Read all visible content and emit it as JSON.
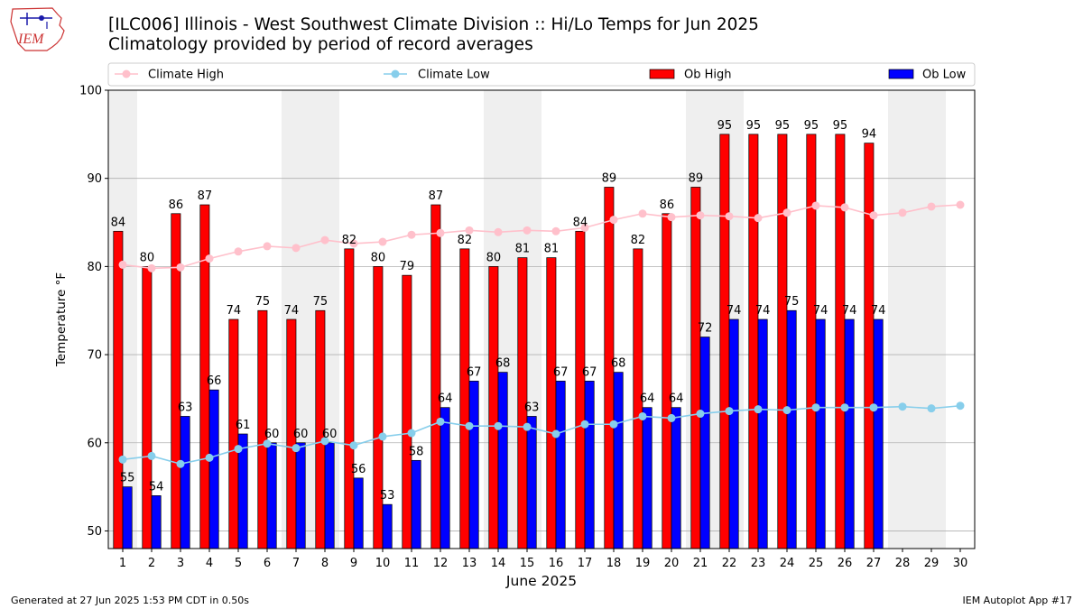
{
  "header": {
    "title": "[ILC006] Illinois - West Southwest Climate Division :: Hi/Lo Temps for Jun 2025",
    "subtitle": "Climatology provided by period of record averages",
    "logo_text": "IEM"
  },
  "footer": {
    "generated": "Generated at 27 Jun 2025 1:53 PM CDT in 0.50s",
    "app": "IEM Autoplot App #17"
  },
  "colors": {
    "ob_high": "#ff0000",
    "ob_low": "#0000ff",
    "climate_high": "#ffc0cb",
    "climate_low": "#87ceeb",
    "weekend_shade": "#efefef",
    "grid": "#b0b0b0"
  },
  "chart_data": {
    "type": "bar",
    "title": "[ILC006] Illinois - West Southwest Climate Division :: Hi/Lo Temps for Jun 2025",
    "subtitle": "Climatology provided by period of record averages",
    "xlabel": "June 2025",
    "ylabel": "Temperature °F",
    "ylim": [
      48,
      100
    ],
    "xlim": [
      0.5,
      30.5
    ],
    "yticks": [
      50,
      60,
      70,
      80,
      90,
      100
    ],
    "grid": "horizontal",
    "legend_position": "top",
    "categories": [
      "1",
      "2",
      "3",
      "4",
      "5",
      "6",
      "7",
      "8",
      "9",
      "10",
      "11",
      "12",
      "13",
      "14",
      "15",
      "16",
      "17",
      "18",
      "19",
      "20",
      "21",
      "22",
      "23",
      "24",
      "25",
      "26",
      "27",
      "28",
      "29",
      "30"
    ],
    "weekends": [
      [
        1,
        1
      ],
      [
        7,
        8
      ],
      [
        14,
        15
      ],
      [
        21,
        22
      ],
      [
        28,
        29
      ]
    ],
    "series": [
      {
        "name": "Climate High",
        "kind": "line",
        "values": [
          80.2,
          79.8,
          79.9,
          80.9,
          81.7,
          82.3,
          82.1,
          83.0,
          82.6,
          82.8,
          83.6,
          83.8,
          84.1,
          83.9,
          84.1,
          84.0,
          84.4,
          85.3,
          86.0,
          85.6,
          85.8,
          85.7,
          85.5,
          86.1,
          86.9,
          86.7,
          85.8,
          86.1,
          86.8,
          87.0
        ]
      },
      {
        "name": "Climate Low",
        "kind": "line",
        "values": [
          58.1,
          58.5,
          57.6,
          58.3,
          59.3,
          59.9,
          59.4,
          60.2,
          59.7,
          60.7,
          61.1,
          62.4,
          61.9,
          61.9,
          61.8,
          61.0,
          62.1,
          62.1,
          63.0,
          62.8,
          63.3,
          63.6,
          63.8,
          63.7,
          64.0,
          64.0,
          64.0,
          64.1,
          63.9,
          64.2
        ]
      },
      {
        "name": "Ob High",
        "kind": "bar",
        "values": [
          84,
          80,
          86,
          87,
          74,
          75,
          74,
          75,
          82,
          80,
          79,
          87,
          82,
          80,
          81,
          81,
          84,
          89,
          82,
          86,
          89,
          95,
          95,
          95,
          95,
          95,
          94,
          null,
          null,
          null
        ]
      },
      {
        "name": "Ob Low",
        "kind": "bar",
        "values": [
          55,
          54,
          63,
          66,
          61,
          60,
          60,
          60,
          56,
          53,
          58,
          64,
          67,
          68,
          63,
          67,
          67,
          68,
          64,
          64,
          72,
          74,
          74,
          75,
          74,
          74,
          74,
          null,
          null,
          null
        ]
      }
    ]
  }
}
